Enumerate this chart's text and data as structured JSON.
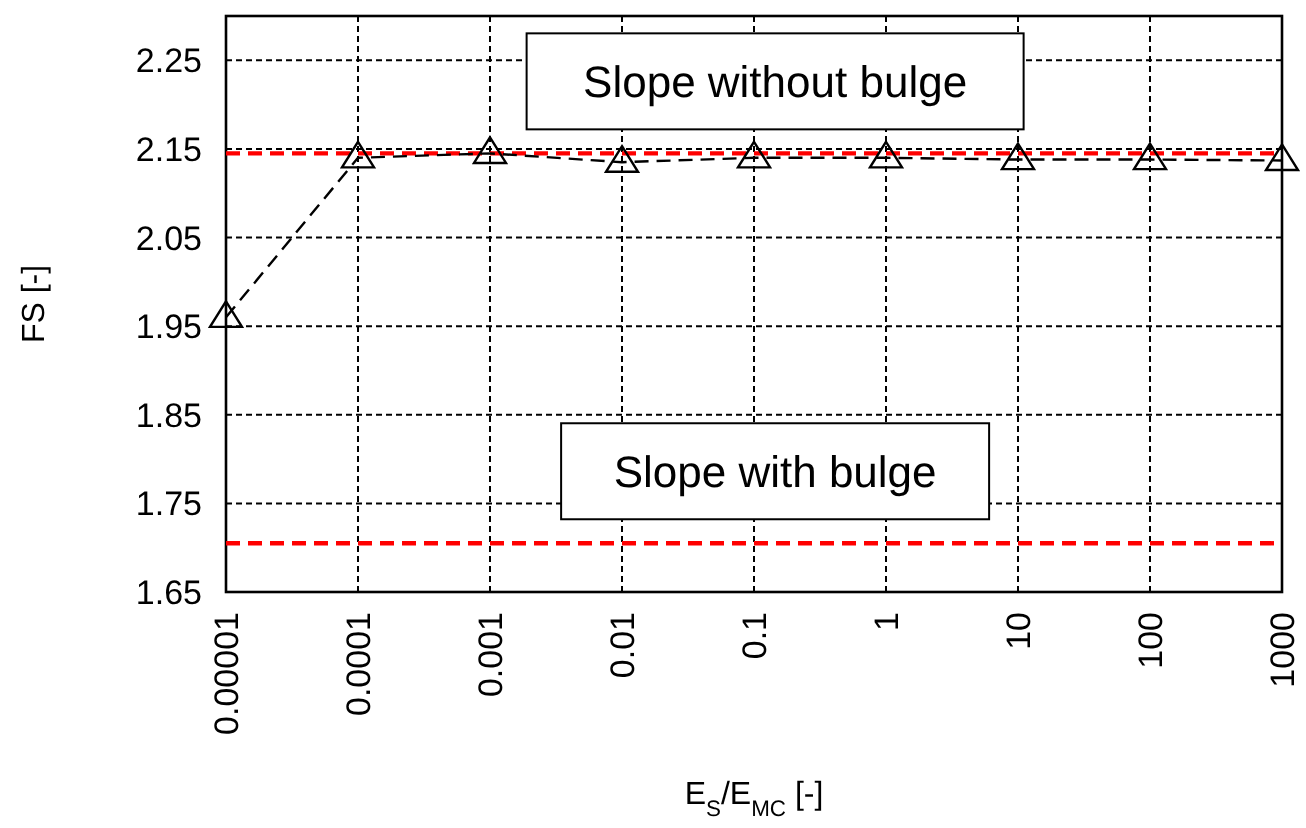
{
  "chart_data": {
    "type": "line",
    "xlabel": "E$_{S}$/E$_{MC}$ [-]",
    "ylabel": "FS [-]",
    "log": "x",
    "x": [
      1e-05,
      0.0001,
      0.001,
      0.01,
      0.1,
      1,
      10,
      100,
      1000
    ],
    "series": [
      {
        "color": "#000000",
        "values": [
          1.96,
          2.14,
          2.145,
          2.135,
          2.14,
          2.14,
          2.138,
          2.138,
          2.137
        ]
      }
    ],
    "xlim": [
      1e-05,
      1000
    ],
    "xticks": [
      {
        "value": 1e-05,
        "label": "0.00001"
      },
      {
        "value": 0.0001,
        "label": "0.0001"
      },
      {
        "value": 0.001,
        "label": "0.001"
      },
      {
        "value": 0.01,
        "label": "0.01"
      },
      {
        "value": 0.1,
        "label": "0.1"
      },
      1,
      10,
      100,
      1000
    ],
    "ylim": [
      1.65,
      2.3
    ],
    "yticks": [
      {
        "value": 1.65,
        "label": "1.65"
      },
      {
        "value": 1.75,
        "label": "1.75"
      },
      {
        "value": 1.85,
        "label": "1.85"
      },
      {
        "value": 1.95,
        "label": "1.95"
      },
      {
        "value": 2.05,
        "label": "2.05"
      },
      {
        "value": 2.15,
        "label": "2.15"
      },
      {
        "value": 2.25,
        "label": "2.25"
      }
    ],
    "ref_lines": [
      {
        "axis": "y",
        "value": 2.145,
        "label": "Slope without bulge",
        "color": "#ff0000",
        "line_style": "dashed"
      },
      {
        "axis": "y",
        "value": 1.705,
        "label": "Slope with bulge",
        "color": "#ff0000",
        "line_style": "dashed"
      }
    ],
    "grid": true,
    "marker": "triangle",
    "line_style": "dashed"
  }
}
